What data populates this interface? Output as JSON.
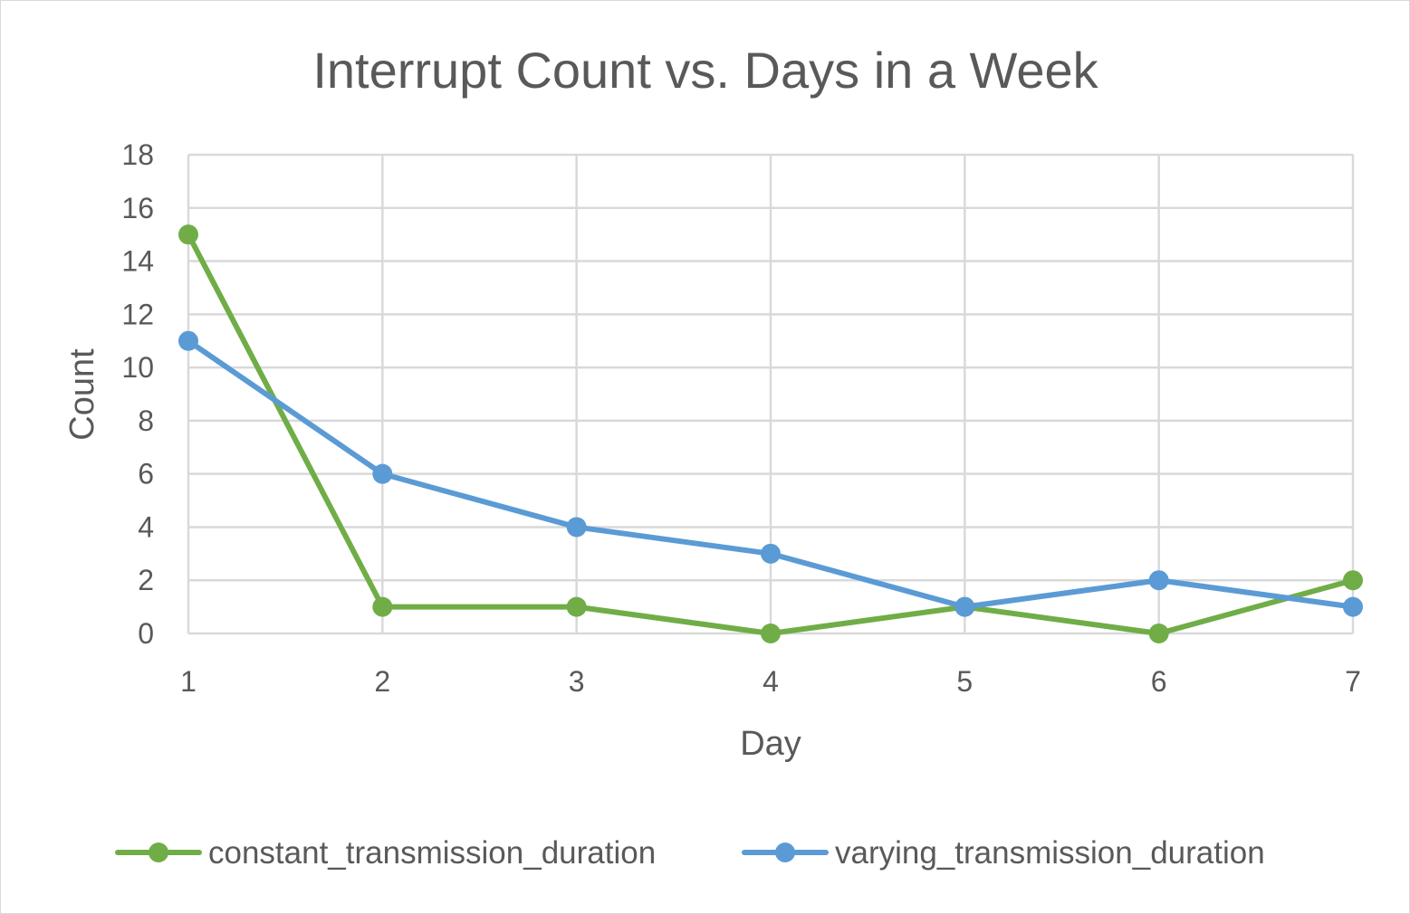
{
  "chart_data": {
    "type": "line",
    "title": "Interrupt Count vs. Days in a Week",
    "xlabel": "Day",
    "ylabel": "Count",
    "x": [
      1,
      2,
      3,
      4,
      5,
      6,
      7
    ],
    "xlim": [
      1,
      7
    ],
    "ylim": [
      0,
      18
    ],
    "yticks": [
      0,
      2,
      4,
      6,
      8,
      10,
      12,
      14,
      16,
      18
    ],
    "grid": true,
    "legend_position": "bottom",
    "series": [
      {
        "name": "constant_transmission_duration",
        "color": "#70ad47",
        "values": [
          15,
          1,
          1,
          0,
          1,
          0,
          2
        ]
      },
      {
        "name": "varying_transmission_duration",
        "color": "#5b9bd5",
        "values": [
          11,
          6,
          4,
          3,
          1,
          2,
          1
        ]
      }
    ]
  }
}
